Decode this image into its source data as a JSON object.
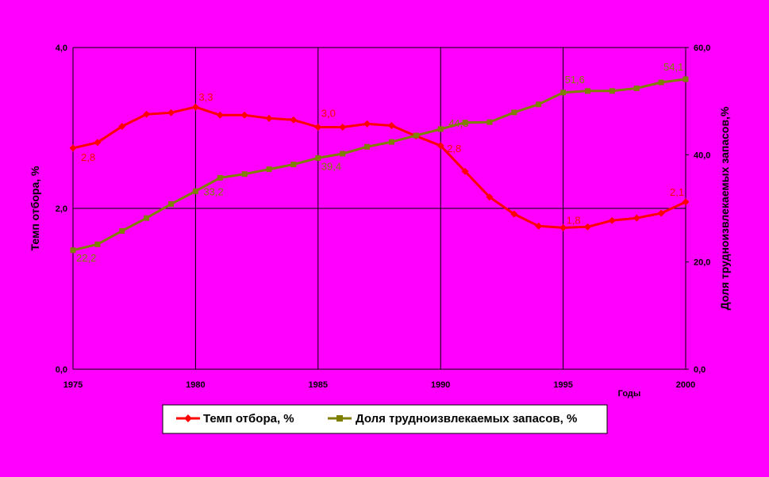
{
  "chart_data": {
    "type": "line",
    "x": [
      1975,
      1976,
      1977,
      1978,
      1979,
      1980,
      1981,
      1982,
      1983,
      1984,
      1985,
      1986,
      1987,
      1988,
      1989,
      1990,
      1991,
      1992,
      1993,
      1994,
      1995,
      1996,
      1997,
      1998,
      1999,
      2000
    ],
    "xlabel": "Годы",
    "x_ticks": [
      "1975",
      "1980",
      "1985",
      "1990",
      "1995",
      "2000"
    ],
    "xlim": [
      1975,
      2000
    ],
    "y_left": {
      "label": "Темп отбора, %",
      "ylim": [
        0,
        4
      ],
      "ticks": [
        "0,0",
        "2,0",
        "4,0"
      ]
    },
    "y_right": {
      "label": "Доля трудноизвлекаемых запасов,%",
      "ylim": [
        0,
        60
      ],
      "ticks": [
        "0,0",
        "20,0",
        "40,0",
        "60,0"
      ]
    },
    "grid": true,
    "legend_position": "bottom",
    "series": [
      {
        "name": "Темп отбора, %",
        "axis": "left",
        "color": "#FF0000",
        "marker": "diamond",
        "values": [
          2.75,
          2.82,
          3.02,
          3.17,
          3.19,
          3.26,
          3.16,
          3.16,
          3.12,
          3.1,
          3.01,
          3.01,
          3.05,
          3.03,
          2.9,
          2.78,
          2.46,
          2.14,
          1.93,
          1.78,
          1.76,
          1.77,
          1.85,
          1.88,
          1.94,
          2.08
        ],
        "labels": [
          {
            "x": 1975,
            "text": "2,8"
          },
          {
            "x": 1980,
            "text": "3,3"
          },
          {
            "x": 1985,
            "text": "3,0"
          },
          {
            "x": 1990,
            "text": "2,8"
          },
          {
            "x": 1995,
            "text": "1,8"
          },
          {
            "x": 2000,
            "text": "2,1"
          }
        ]
      },
      {
        "name": "Доля трудноизвлекаемых запасов, %",
        "axis": "right",
        "color": "#808000",
        "marker": "square",
        "values": [
          22.2,
          23.3,
          25.8,
          28.2,
          30.8,
          33.2,
          35.7,
          36.4,
          37.3,
          38.2,
          39.4,
          40.2,
          41.5,
          42.4,
          43.6,
          44.8,
          46.0,
          46.1,
          47.9,
          49.4,
          51.6,
          51.9,
          51.9,
          52.4,
          53.5,
          54.1
        ],
        "labels": [
          {
            "x": 1975,
            "text": "22,2"
          },
          {
            "x": 1980,
            "text": "33,2"
          },
          {
            "x": 1985,
            "text": "39,4"
          },
          {
            "x": 1990,
            "text": "44,8"
          },
          {
            "x": 1995,
            "text": "51,6"
          },
          {
            "x": 2000,
            "text": "54,1"
          }
        ]
      }
    ]
  }
}
